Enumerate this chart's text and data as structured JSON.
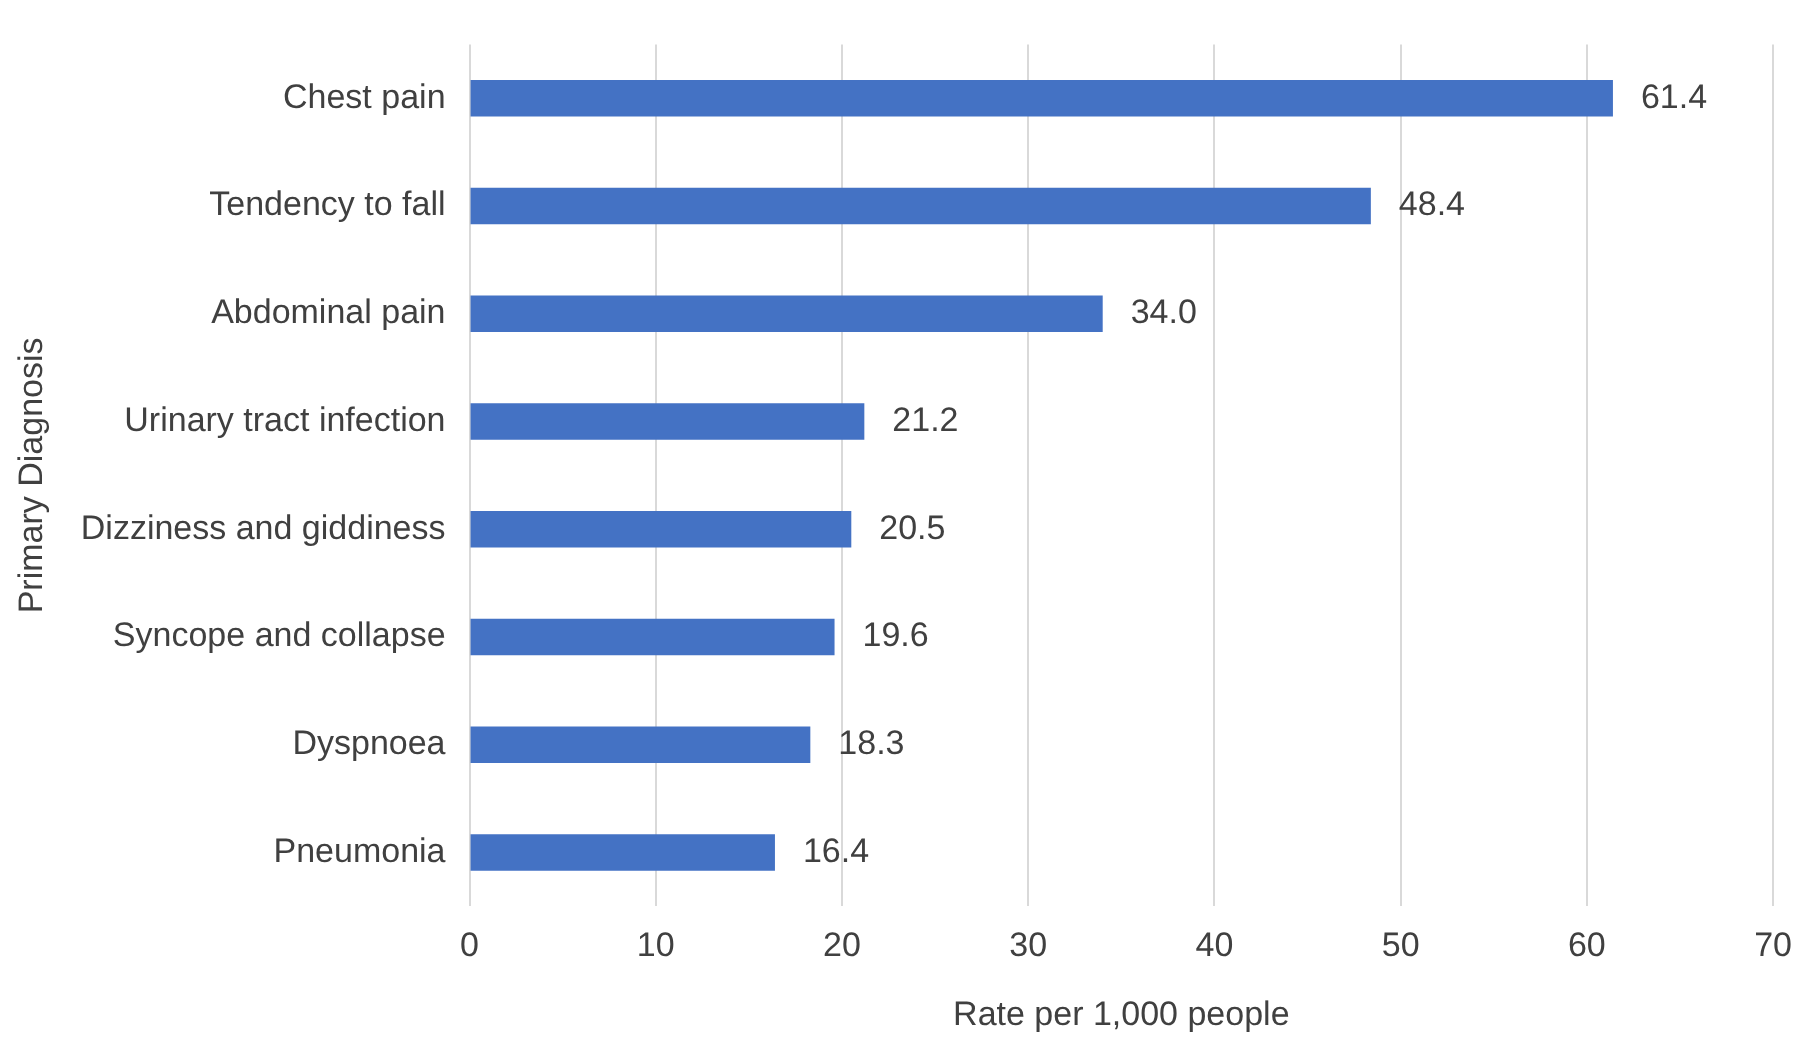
{
  "chart_data": {
    "type": "bar",
    "orientation": "horizontal",
    "xlabel": "Rate per 1,000 people",
    "ylabel": "Primary Diagnosis",
    "categories": [
      "Chest pain",
      "Tendency to fall",
      "Abdominal pain",
      "Urinary tract infection",
      "Dizziness and giddiness",
      "Syncope and collapse",
      "Dyspnoea",
      "Pneumonia"
    ],
    "values": [
      61.4,
      48.4,
      34.0,
      21.2,
      20.5,
      19.6,
      18.3,
      16.4
    ],
    "value_labels": [
      "61.4",
      "48.4",
      "34.0",
      "21.2",
      "20.5",
      "19.6",
      "18.3",
      "16.4"
    ],
    "color": "#4472c4",
    "xlim": [
      0,
      70
    ],
    "xticks": [
      0,
      10,
      20,
      30,
      40,
      50,
      60,
      70
    ],
    "grid": "x"
  }
}
